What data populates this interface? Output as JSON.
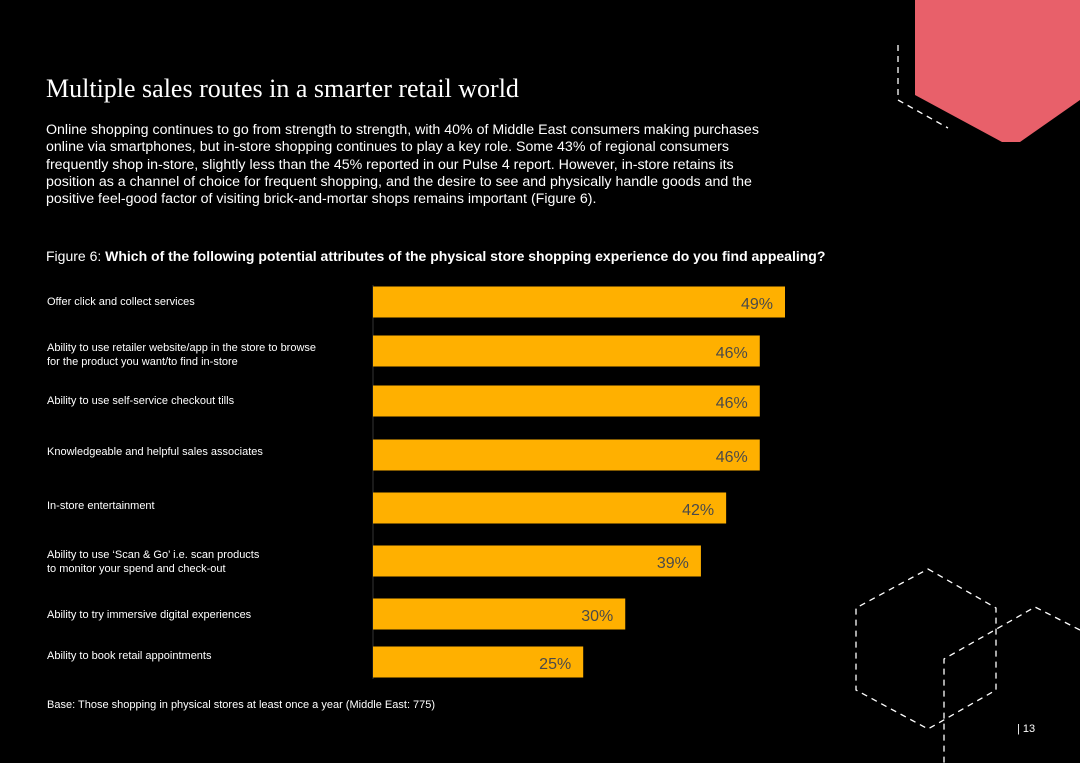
{
  "page": {
    "title": "Multiple sales routes in a smarter retail world",
    "intro": "Online shopping continues to go from strength to strength, with 40% of Middle East consumers making purchases online via smartphones, but in-store shopping continues to play a key role. Some 43% of regional consumers frequently shop in-store, slightly less than the 45% reported in our Pulse 4 report. However, in-store retains its position as a channel of choice for frequent shopping, and the desire to see and physically handle goods and the positive feel-good factor of visiting brick-and-mortar shops remains important (Figure 6).",
    "figure_prefix": "Figure 6: ",
    "figure_question": "Which of the following potential attributes of the physical store shopping experience do you find appealing?",
    "base_note": "Base: Those shopping in physical stores at least once a year (Middle East: 775)",
    "page_number": "| 13"
  },
  "colors": {
    "background": "#000000",
    "bar": "#FFB000",
    "value_text": "#4a4a4a",
    "accent_hexagon": "#E8606A"
  },
  "chart_data": {
    "type": "bar",
    "orientation": "horizontal",
    "categories": [
      [
        "Offer click and collect services"
      ],
      [
        "Ability to use retailer website/app in the store to browse",
        "for the product you want/to find in-store"
      ],
      [
        "Ability to use self-service checkout tills"
      ],
      [
        "Knowledgeable and helpful sales associates"
      ],
      [
        "In-store entertainment"
      ],
      [
        "Ability to use ‘Scan & Go’ i.e. scan products",
        "to monitor your spend and check-out"
      ],
      [
        "Ability to try immersive digital experiences"
      ],
      [
        "Ability to book retail appointments"
      ]
    ],
    "values": [
      49,
      46,
      46,
      46,
      42,
      39,
      30,
      25
    ],
    "value_labels": [
      "49%",
      "46%",
      "46%",
      "46%",
      "42%",
      "39%",
      "30%",
      "25%"
    ],
    "xlim": [
      0,
      49
    ],
    "grid": false,
    "legend": "none"
  }
}
